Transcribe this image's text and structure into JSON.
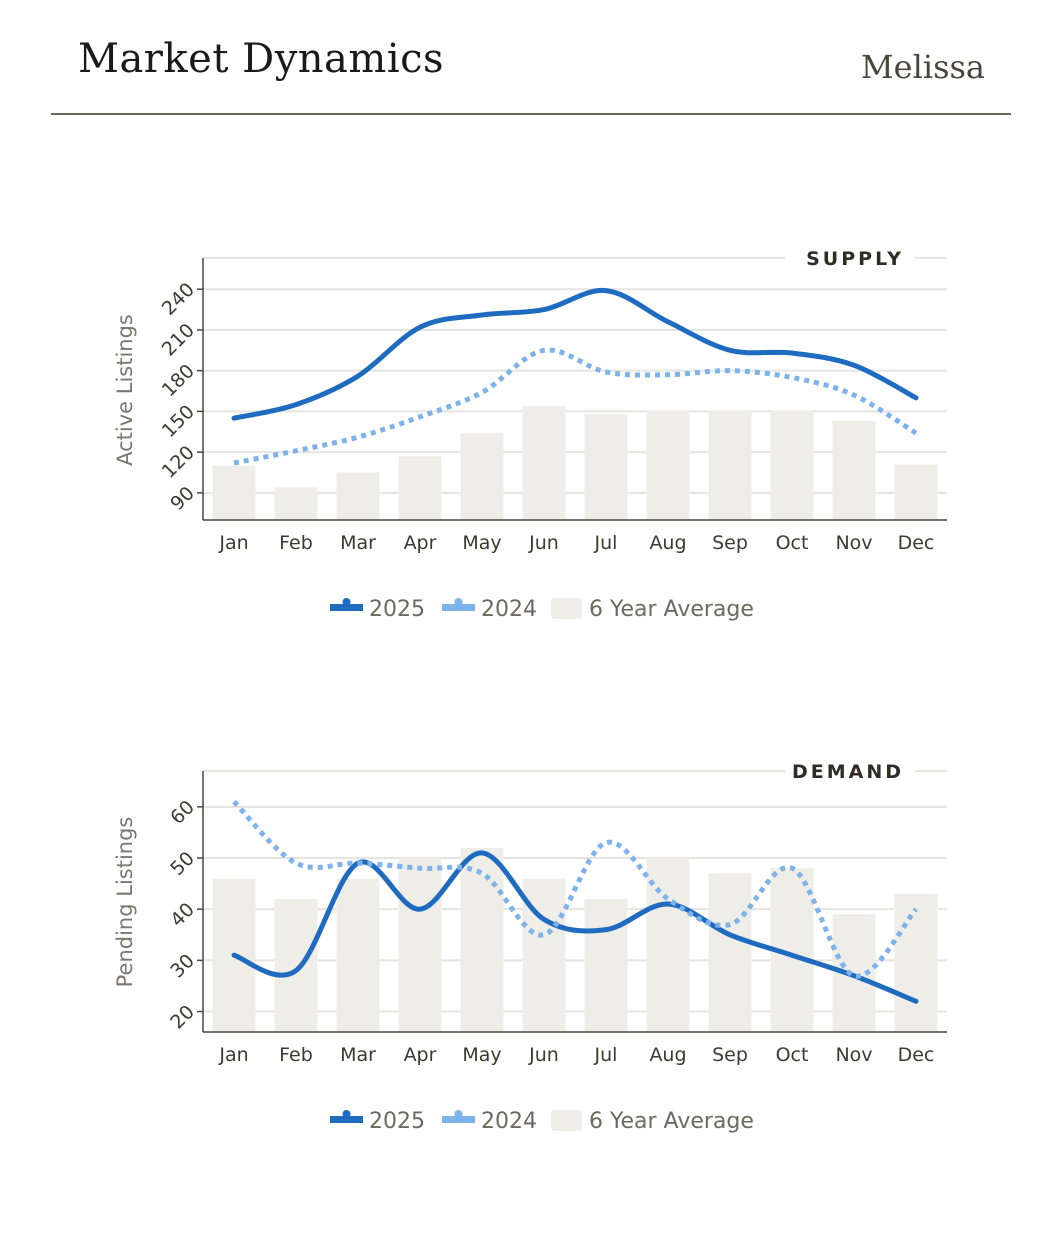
{
  "header": {
    "title": "Market Dynamics",
    "author": "Melissa"
  },
  "colors": {
    "series_2025": "#1f6bbf",
    "series_2024": "#7db3ea",
    "average_bar": "#efede7",
    "gridline": "#e6e4e0",
    "axis": "#4a463c"
  },
  "chart_data": [
    {
      "type": "bar+line",
      "title": "SUPPLY",
      "ylabel": "Active Listings",
      "xlabel": "",
      "categories": [
        "Jan",
        "Feb",
        "Mar",
        "Apr",
        "May",
        "Jun",
        "Jul",
        "Aug",
        "Sep",
        "Oct",
        "Nov",
        "Dec"
      ],
      "ylim": [
        70,
        263
      ],
      "yticks": [
        90,
        120,
        150,
        180,
        210,
        240
      ],
      "grid": true,
      "legend_position": "bottom-center",
      "series": [
        {
          "name": "2025",
          "type": "line",
          "style": "solid",
          "values": [
            145,
            155,
            176,
            212,
            221,
            225,
            239,
            216,
            195,
            193,
            184,
            160
          ]
        },
        {
          "name": "2024",
          "type": "line",
          "style": "dotted",
          "values": [
            112,
            121,
            131,
            146,
            164,
            195,
            179,
            177,
            180,
            175,
            162,
            134
          ]
        },
        {
          "name": "6 Year Average",
          "type": "bar",
          "values": [
            110,
            94,
            105,
            117,
            134,
            154,
            148,
            151,
            151,
            151,
            143,
            111
          ]
        }
      ],
      "legend": [
        "2025",
        "2024",
        "6 Year Average"
      ]
    },
    {
      "type": "bar+line",
      "title": "DEMAND",
      "ylabel": "Pending Listings",
      "xlabel": "",
      "categories": [
        "Jan",
        "Feb",
        "Mar",
        "Apr",
        "May",
        "Jun",
        "Jul",
        "Aug",
        "Sep",
        "Oct",
        "Nov",
        "Dec"
      ],
      "ylim": [
        16,
        67
      ],
      "yticks": [
        20,
        30,
        40,
        50,
        60
      ],
      "grid": true,
      "legend_position": "bottom-center",
      "series": [
        {
          "name": "2025",
          "type": "line",
          "style": "solid",
          "values": [
            31,
            28,
            49,
            40,
            51,
            38,
            36,
            41,
            35,
            31,
            27,
            22
          ]
        },
        {
          "name": "2024",
          "type": "line",
          "style": "dotted",
          "values": [
            61,
            49,
            49,
            48,
            47,
            35,
            53,
            42,
            37,
            48,
            27,
            40
          ]
        },
        {
          "name": "6 Year Average",
          "type": "bar",
          "values": [
            46,
            42,
            46,
            50,
            52,
            46,
            42,
            50,
            47,
            48,
            39,
            43
          ]
        }
      ],
      "legend": [
        "2025",
        "2024",
        "6 Year Average"
      ]
    }
  ]
}
